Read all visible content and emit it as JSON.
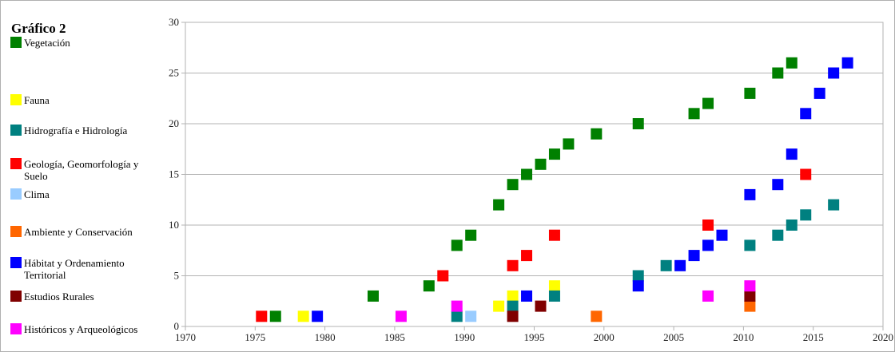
{
  "chart_data": {
    "type": "scatter",
    "title": "Gráfico 2",
    "xlim": [
      1970,
      2020
    ],
    "xticks": [
      1970,
      1975,
      1980,
      1985,
      1990,
      1995,
      2000,
      2005,
      2010,
      2015,
      2020
    ],
    "ylim": [
      0,
      30
    ],
    "yticks": [
      0,
      5,
      10,
      15,
      20,
      25,
      30
    ],
    "grid": true,
    "legend": "left",
    "series": [
      {
        "name": "Vegetación",
        "color": "#008000",
        "x": [
          1976,
          1983,
          1987,
          1989,
          1990,
          1992,
          1993,
          1994,
          1995,
          1996,
          1997,
          1999,
          2002,
          2006,
          2007,
          2010,
          2012,
          2013
        ],
        "values": [
          1,
          3,
          4,
          8,
          9,
          12,
          14,
          15,
          16,
          17,
          18,
          19,
          20,
          21,
          22,
          23,
          25,
          26
        ]
      },
      {
        "name": "Fauna",
        "color": "#ffff00",
        "x": [
          1978,
          1992,
          1993,
          1996
        ],
        "values": [
          1,
          2,
          3,
          4
        ]
      },
      {
        "name": "Hidrografía e Hidrología",
        "color": "#008080",
        "x": [
          1989,
          1993,
          1996,
          2002,
          2004,
          2010,
          2012,
          2013,
          2014,
          2016
        ],
        "values": [
          1,
          2,
          3,
          5,
          6,
          8,
          9,
          10,
          11,
          12
        ]
      },
      {
        "name": "Geología, Geomorfología y Suelo",
        "color": "#ff0000",
        "x": [
          1975,
          1988,
          1993,
          1994,
          1996,
          2007,
          2014
        ],
        "values": [
          1,
          5,
          6,
          7,
          9,
          10,
          15
        ]
      },
      {
        "name": "Clima",
        "color": "#99ccff",
        "x": [
          1990
        ],
        "values": [
          1
        ]
      },
      {
        "name": "Ambiente y Conservación",
        "color": "#ff6600",
        "x": [
          1999,
          2010
        ],
        "values": [
          1,
          2
        ]
      },
      {
        "name": "Hábitat y Ordenamiento Territorial",
        "color": "#0000ff",
        "x": [
          1979,
          1994,
          2002,
          2005,
          2006,
          2007,
          2008,
          2010,
          2012,
          2013,
          2014,
          2015,
          2016,
          2017
        ],
        "values": [
          1,
          3,
          4,
          6,
          7,
          8,
          9,
          13,
          14,
          17,
          21,
          23,
          25,
          26
        ]
      },
      {
        "name": "Estudios Rurales",
        "color": "#800000",
        "x": [
          1993,
          1995,
          2010
        ],
        "values": [
          1,
          2,
          3
        ]
      },
      {
        "name": "Históricos y Arqueológicos",
        "color": "#ff00ff",
        "x": [
          1985,
          1989,
          2007,
          2010
        ],
        "values": [
          1,
          2,
          3,
          4
        ]
      }
    ]
  }
}
